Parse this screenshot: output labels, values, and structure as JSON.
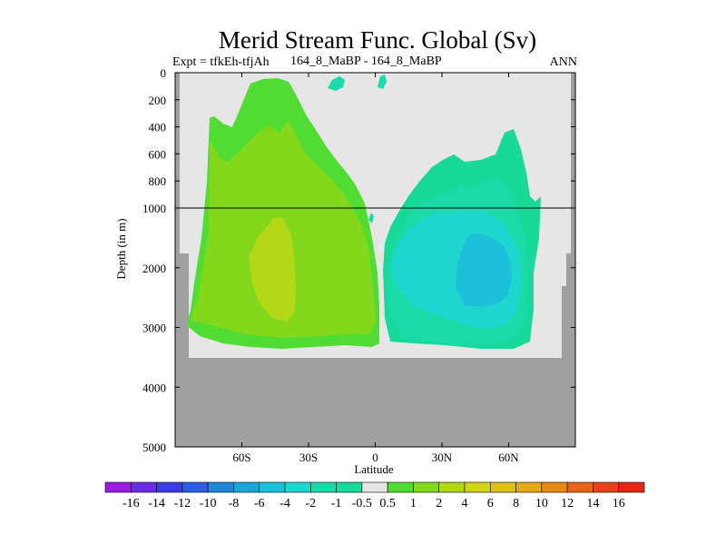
{
  "chart_data": {
    "type": "contour",
    "title": "Merid Stream Func. Global (Sv)",
    "experiment": "Expt = tfkEh-tfjAh",
    "subtitle": "164_8_MaBP - 164_8_MaBP",
    "season": "ANN",
    "xlabel": "Latitude",
    "ylabel": "Depth (in m)",
    "x_ticks": [
      "60S",
      "30S",
      "0",
      "30N",
      "60N"
    ],
    "x_tick_values": [
      -60,
      -30,
      0,
      30,
      60
    ],
    "xlim": [
      -90,
      90
    ],
    "y_ticks_upper": [
      "0",
      "200",
      "400",
      "600",
      "800",
      "1000"
    ],
    "y_tick_values_upper": [
      0,
      200,
      400,
      600,
      800,
      1000
    ],
    "y_ticks_lower": [
      "2000",
      "3000",
      "4000",
      "5000"
    ],
    "y_tick_values_lower": [
      2000,
      3000,
      4000,
      5000
    ],
    "ylim": [
      5000,
      0
    ],
    "y_scale": "two-segment linear (0-1000 m stretched, 1000-5000 m compressed)",
    "reference_line_depth": 1000,
    "colorbar_labels": [
      "-16",
      "-14",
      "-12",
      "-10",
      "-8",
      "-6",
      "-4",
      "-2",
      "-1",
      "-0.5",
      "0.5",
      "1",
      "2",
      "4",
      "6",
      "8",
      "10",
      "12",
      "14",
      "16"
    ],
    "colorbar_colors": [
      "#9b1be0",
      "#6a2ce0",
      "#3c3ce6",
      "#2b5ee0",
      "#1f86d8",
      "#1aa6d8",
      "#1cc0d8",
      "#1ed6cf",
      "#1adaa8",
      "#18d89a",
      "#e6e6e6",
      "#50dc32",
      "#84d81c",
      "#b2d818",
      "#d2d418",
      "#e0c018",
      "#e6a818",
      "#e88818",
      "#e66618",
      "#e64418",
      "#e42818"
    ],
    "land_color": "#a0a0a0",
    "background_color": "#e6e6e6",
    "features": [
      {
        "name": "southern overturning cell",
        "sign": "positive",
        "lat_range": [
          -82,
          -2
        ],
        "depth_max": 3500,
        "max_level": "4 to 6"
      },
      {
        "name": "northern overturning cell",
        "sign": "negative",
        "lat_range": [
          2,
          72
        ],
        "depth_max": 3500,
        "min_level": "-6 to -4"
      }
    ]
  }
}
